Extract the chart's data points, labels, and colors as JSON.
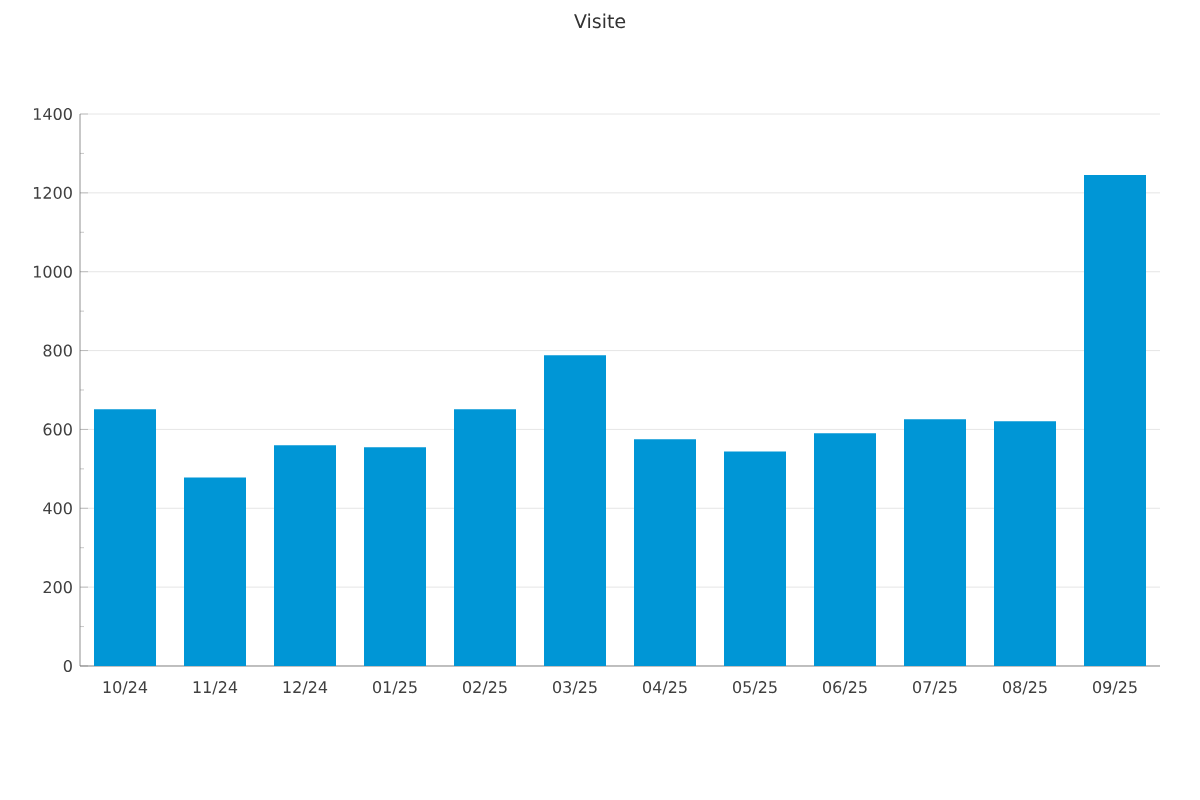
{
  "chart_data": {
    "type": "bar",
    "title": "Visite",
    "categories": [
      "10/24",
      "11/24",
      "12/24",
      "01/25",
      "02/25",
      "03/25",
      "04/25",
      "05/25",
      "06/25",
      "07/25",
      "08/25",
      "09/25"
    ],
    "values": [
      651,
      478,
      560,
      555,
      651,
      788,
      575,
      544,
      590,
      626,
      621,
      1245
    ],
    "color": "#0096d6",
    "ylim": [
      0,
      1400
    ],
    "yticks": [
      0,
      200,
      400,
      600,
      800,
      1000,
      1200,
      1400
    ],
    "grid": "y"
  }
}
